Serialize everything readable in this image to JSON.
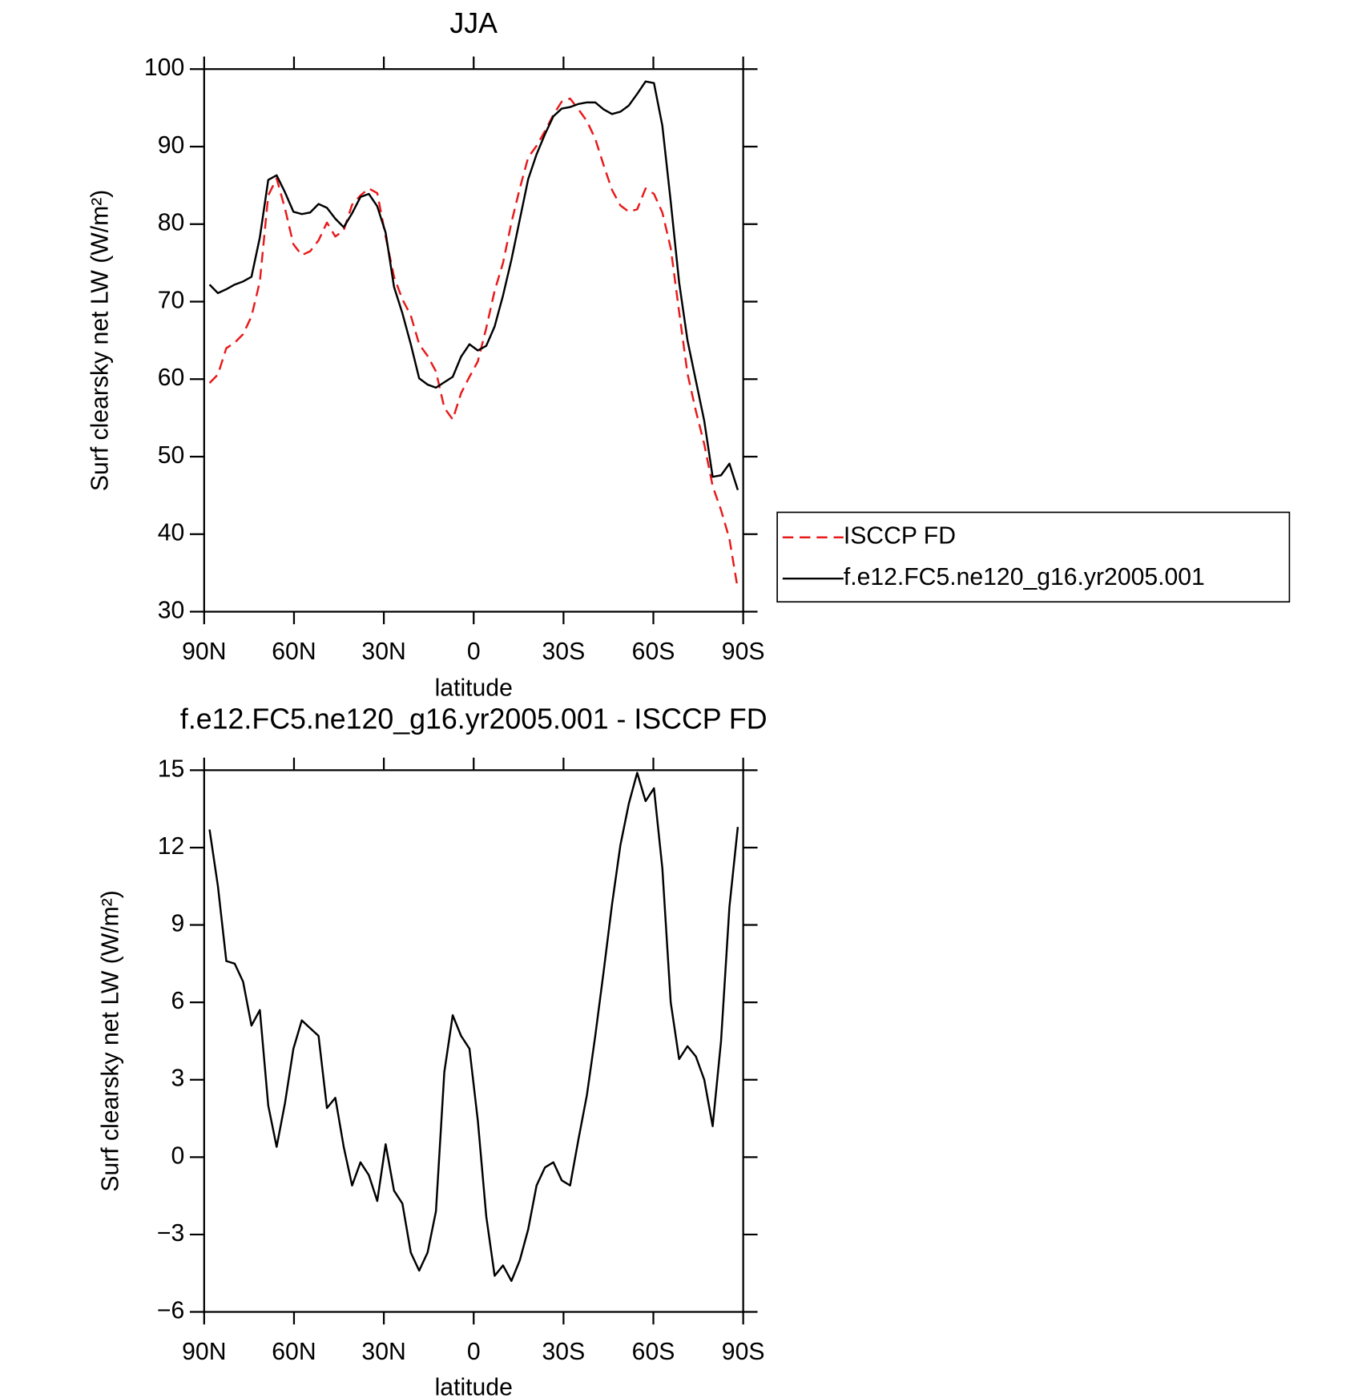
{
  "chart_data": [
    {
      "type": "line",
      "title": "JJA",
      "x_label": "latitude",
      "y_label": "Surf clearsky net LW (W/m²)",
      "x": [
        88.2,
        85.4,
        82.6,
        79.8,
        77,
        74.2,
        71.4,
        68.6,
        65.8,
        63,
        60.2,
        57.4,
        54.6,
        51.8,
        49,
        46.2,
        43.4,
        40.6,
        37.8,
        35,
        32.2,
        29.4,
        26.6,
        23.8,
        21,
        18.2,
        15.4,
        12.6,
        9.8,
        7,
        4.2,
        1.4,
        -1.4,
        -4.2,
        -7,
        -9.8,
        -12.6,
        -15.4,
        -18.2,
        -21,
        -23.8,
        -26.6,
        -29.4,
        -32.2,
        -35,
        -37.8,
        -40.6,
        -43.4,
        -46.2,
        -49,
        -51.8,
        -54.6,
        -57.4,
        -60.2,
        -63,
        -65.8,
        -68.6,
        -71.4,
        -74.2,
        -77,
        -79.8,
        -82.6,
        -85.4,
        -88.2
      ],
      "series": [
        {
          "name": "ISCCP FD",
          "color": "#e8191a",
          "dashed": true,
          "values": [
            59.5,
            60.6,
            64.0,
            64.7,
            65.8,
            68.1,
            72.6,
            83.7,
            85.9,
            82.0,
            77.4,
            76.0,
            76.5,
            77.9,
            80.2,
            78.4,
            79.2,
            82.5,
            83.7,
            84.6,
            84.0,
            78.4,
            73.2,
            70.3,
            68.2,
            64.5,
            63.0,
            61.0,
            56.3,
            54.8,
            58.2,
            60.3,
            62.3,
            66.6,
            71.4,
            75.0,
            80.2,
            84.6,
            88.6,
            90.1,
            92.0,
            94.1,
            95.8,
            96.2,
            94.8,
            93.3,
            91.0,
            87.6,
            84.4,
            82.4,
            81.6,
            81.9,
            84.6,
            83.9,
            81.5,
            76.9,
            68.7,
            60.7,
            55.9,
            51.6,
            46.2,
            43.1,
            39.4,
            32.9
          ]
        },
        {
          "name": "f.e12.FC5.ne120_g16.yr2005.001",
          "color": "#000000",
          "dashed": false,
          "values": [
            72.2,
            71.1,
            71.6,
            72.2,
            72.6,
            73.2,
            78.3,
            85.7,
            86.3,
            84.1,
            81.6,
            81.3,
            81.5,
            82.6,
            82.1,
            80.7,
            79.6,
            81.4,
            83.5,
            83.9,
            82.3,
            78.9,
            71.9,
            68.5,
            64.5,
            60.1,
            59.3,
            58.9,
            59.6,
            60.3,
            62.9,
            64.5,
            63.7,
            64.3,
            66.8,
            70.8,
            75.4,
            80.6,
            85.8,
            89.0,
            91.6,
            93.9,
            94.9,
            95.1,
            95.5,
            95.7,
            95.7,
            94.8,
            94.2,
            94.5,
            95.3,
            96.8,
            98.4,
            98.2,
            92.7,
            82.9,
            72.5,
            65.0,
            59.8,
            54.6,
            47.4,
            47.6,
            49.1,
            45.7
          ]
        }
      ],
      "xlim": [
        90,
        -90
      ],
      "xticks": [
        {
          "value": 90,
          "label": "90N"
        },
        {
          "value": 60,
          "label": "60N"
        },
        {
          "value": 30,
          "label": "30N"
        },
        0,
        {
          "value": -30,
          "label": "30S"
        },
        {
          "value": -60,
          "label": "60S"
        },
        {
          "value": -90,
          "label": "90S"
        }
      ],
      "ylim": [
        30,
        100
      ],
      "yticks": [
        30,
        40,
        50,
        60,
        70,
        80,
        90,
        100
      ],
      "legend": "outside-right"
    },
    {
      "type": "line",
      "title": "f.e12.FC5.ne120_g16.yr2005.001 - ISCCP FD",
      "x_label": "latitude",
      "y_label": "Surf clearsky net LW (W/m²)",
      "x": [
        88.2,
        85.4,
        82.6,
        79.8,
        77,
        74.2,
        71.4,
        68.6,
        65.8,
        63,
        60.2,
        57.4,
        54.6,
        51.8,
        49,
        46.2,
        43.4,
        40.6,
        37.8,
        35,
        32.2,
        29.4,
        26.6,
        23.8,
        21,
        18.2,
        15.4,
        12.6,
        9.8,
        7,
        4.2,
        1.4,
        -1.4,
        -4.2,
        -7,
        -9.8,
        -12.6,
        -15.4,
        -18.2,
        -21,
        -23.8,
        -26.6,
        -29.4,
        -32.2,
        -35,
        -37.8,
        -40.6,
        -43.4,
        -46.2,
        -49,
        -51.8,
        -54.6,
        -57.4,
        -60.2,
        -63,
        -65.8,
        -68.6,
        -71.4,
        -74.2,
        -77,
        -79.8,
        -82.6,
        -85.4,
        -88.2
      ],
      "color": "#000000",
      "values": [
        12.7,
        10.5,
        7.6,
        7.5,
        6.8,
        5.1,
        5.7,
        2.0,
        0.4,
        2.1,
        4.2,
        5.3,
        5.0,
        4.7,
        1.9,
        2.3,
        0.4,
        -1.1,
        -0.2,
        -0.7,
        -1.7,
        0.5,
        -1.3,
        -1.8,
        -3.7,
        -4.4,
        -3.7,
        -2.1,
        3.3,
        5.5,
        4.7,
        4.2,
        1.4,
        -2.3,
        -4.6,
        -4.2,
        -4.8,
        -4.0,
        -2.8,
        -1.1,
        -0.4,
        -0.2,
        -0.9,
        -1.1,
        0.7,
        2.4,
        4.7,
        7.2,
        9.8,
        12.1,
        13.7,
        14.9,
        13.8,
        14.3,
        11.2,
        6.0,
        3.8,
        4.3,
        3.9,
        3.0,
        1.2,
        4.5,
        9.7,
        12.8
      ],
      "xlim": [
        90,
        -90
      ],
      "xticks": [
        {
          "value": 90,
          "label": "90N"
        },
        {
          "value": 60,
          "label": "60N"
        },
        {
          "value": 30,
          "label": "30N"
        },
        0,
        {
          "value": -30,
          "label": "30S"
        },
        {
          "value": -60,
          "label": "60S"
        },
        {
          "value": -90,
          "label": "90S"
        }
      ],
      "ylim": [
        -6,
        15
      ],
      "yticks": [
        {
          "value": -6,
          "label": "−6"
        },
        {
          "value": -3,
          "label": "−3"
        },
        0,
        3,
        6,
        9,
        12,
        15
      ]
    }
  ]
}
